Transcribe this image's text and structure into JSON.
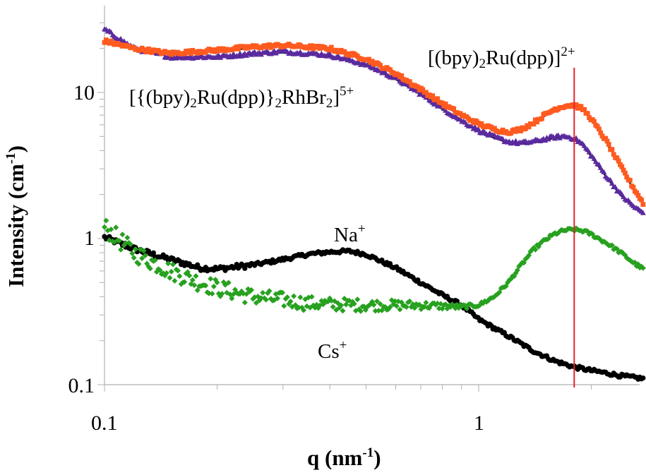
{
  "chart_data": {
    "type": "scatter",
    "xscale": "log",
    "yscale": "log",
    "xlim": [
      0.1,
      2.75
    ],
    "ylim": [
      0.1,
      30
    ],
    "xlabel": {
      "main": "q (nm",
      "exp": "-1",
      "tail": ")"
    },
    "ylabel": {
      "main": "Intensity (cm",
      "exp": "-1",
      "tail": ")"
    },
    "x_ticks": [
      {
        "value": 0.1,
        "label": "0.1"
      },
      {
        "value": 1,
        "label": "1"
      }
    ],
    "y_ticks": [
      {
        "value": 0.1,
        "label": "0.1"
      },
      {
        "value": 1,
        "label": "1"
      },
      {
        "value": 10,
        "label": "10"
      }
    ],
    "vertical_line": {
      "x": 1.8,
      "color": "#e8212a"
    },
    "annotations": {
      "trimer": {
        "parts": [
          "[{(bpy)",
          "2",
          "Ru(dpp)}",
          "2",
          "RhBr",
          "2",
          "]",
          "5+"
        ]
      },
      "monomer": {
        "parts": [
          "[(bpy)",
          "2",
          "Ru(dpp)]",
          "2+"
        ]
      },
      "na": {
        "base": "Na",
        "sup": "+"
      },
      "cs": {
        "base": "Cs",
        "sup": "+"
      }
    },
    "series": [
      {
        "name": "[{(bpy)2Ru(dpp)}2RhBr2]5+",
        "color": "#ff5a1f",
        "marker": "square",
        "x": [
          0.1,
          0.12,
          0.15,
          0.2,
          0.25,
          0.3,
          0.35,
          0.4,
          0.5,
          0.6,
          0.7,
          0.8,
          0.9,
          1.0,
          1.1,
          1.2,
          1.3,
          1.4,
          1.5,
          1.6,
          1.7,
          1.8,
          1.9,
          2.0,
          2.2,
          2.4,
          2.6,
          2.75
        ],
        "y": [
          22.5,
          20,
          18.5,
          19.5,
          20.5,
          21,
          20.5,
          20,
          17,
          13.5,
          10.5,
          8.4,
          7,
          6.1,
          5.6,
          5.35,
          5.6,
          6.2,
          7.0,
          7.7,
          8.1,
          8.2,
          7.7,
          6.6,
          4.6,
          3.1,
          2.2,
          1.75
        ],
        "fit": true,
        "fit_color": "#000000"
      },
      {
        "name": "[(bpy)2Ru(dpp)]2+",
        "color": "#5a2a9e",
        "marker": "triangle",
        "x": [
          0.1,
          0.12,
          0.15,
          0.2,
          0.25,
          0.3,
          0.35,
          0.4,
          0.5,
          0.6,
          0.7,
          0.8,
          0.9,
          1.0,
          1.1,
          1.2,
          1.3,
          1.4,
          1.5,
          1.6,
          1.7,
          1.8,
          1.9,
          2.0,
          2.2,
          2.4,
          2.6,
          2.75
        ],
        "y": [
          27,
          20,
          17.5,
          17.5,
          18.5,
          19,
          18.5,
          18,
          15.5,
          12.5,
          9.8,
          7.8,
          6.4,
          5.5,
          4.95,
          4.6,
          4.5,
          4.6,
          4.8,
          4.95,
          5.0,
          4.85,
          4.4,
          3.7,
          2.65,
          2.0,
          1.65,
          1.5
        ],
        "fit": true,
        "fit_color": "#000000"
      },
      {
        "name": "Na+",
        "color": "#000000",
        "marker": "circle",
        "x": [
          0.1,
          0.12,
          0.15,
          0.18,
          0.2,
          0.25,
          0.3,
          0.35,
          0.4,
          0.45,
          0.5,
          0.6,
          0.7,
          0.8,
          0.9,
          1.0,
          1.2,
          1.4,
          1.6,
          1.8,
          2.0,
          2.2,
          2.4,
          2.6,
          2.75
        ],
        "y": [
          1.02,
          0.85,
          0.72,
          0.63,
          0.62,
          0.66,
          0.72,
          0.78,
          0.81,
          0.82,
          0.78,
          0.63,
          0.5,
          0.41,
          0.35,
          0.28,
          0.215,
          0.17,
          0.145,
          0.132,
          0.125,
          0.12,
          0.115,
          0.112,
          0.11
        ],
        "fit": false
      },
      {
        "name": "Cs+",
        "color": "#27a11f",
        "marker": "diamond",
        "x": [
          0.1,
          0.12,
          0.15,
          0.18,
          0.2,
          0.25,
          0.3,
          0.35,
          0.4,
          0.5,
          0.6,
          0.7,
          0.8,
          0.9,
          1.0,
          1.1,
          1.2,
          1.3,
          1.4,
          1.5,
          1.6,
          1.7,
          1.8,
          1.9,
          2.0,
          2.2,
          2.4,
          2.6,
          2.75
        ],
        "y": [
          1.2,
          0.8,
          0.6,
          0.5,
          0.46,
          0.4,
          0.38,
          0.36,
          0.355,
          0.35,
          0.35,
          0.35,
          0.345,
          0.34,
          0.35,
          0.4,
          0.5,
          0.66,
          0.84,
          0.97,
          1.08,
          1.14,
          1.15,
          1.13,
          1.07,
          0.93,
          0.8,
          0.68,
          0.62
        ],
        "fit": false
      }
    ]
  }
}
